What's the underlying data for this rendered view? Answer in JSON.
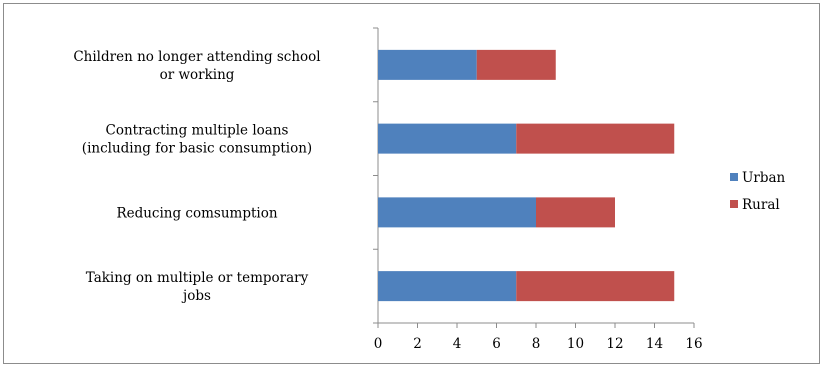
{
  "chart_data": {
    "type": "bar",
    "orientation": "horizontal",
    "stacked": true,
    "categories": [
      [
        "Children no longer attending school",
        "or working"
      ],
      [
        "Contracting multiple loans",
        "(including for basic consumption)"
      ],
      [
        "Reducing comsumption"
      ],
      [
        "Taking on multiple or temporary",
        "jobs"
      ]
    ],
    "series": [
      {
        "name": "Urban",
        "color": "#4f81bd",
        "values": [
          5,
          7,
          8,
          7
        ]
      },
      {
        "name": "Rural",
        "color": "#c0504d",
        "values": [
          4,
          8,
          4,
          8
        ]
      }
    ],
    "xlim": [
      0,
      16
    ],
    "xticks": [
      "0",
      "2",
      "4",
      "6",
      "8",
      "10",
      "12",
      "14",
      "16"
    ],
    "title": "",
    "xlabel": "",
    "ylabel": "",
    "grid": false,
    "legend_position": "right"
  }
}
